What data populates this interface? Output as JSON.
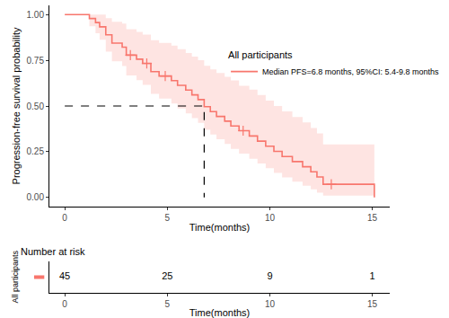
{
  "chart_data": [
    {
      "type": "line",
      "x_label": "Time(months)",
      "y_label": "Progression-free survival probability",
      "legend_title": "All participants",
      "legend": "right",
      "grid": false,
      "xlim": [
        -0.75,
        15.85
      ],
      "ylim": [
        -0.05,
        1.05
      ],
      "xticks": [
        0,
        5,
        10,
        15
      ],
      "yticks": [
        {
          "value": 0,
          "label": "0.00"
        },
        {
          "value": 0.25,
          "label": "0.25"
        },
        {
          "value": 0.5,
          "label": "0.50"
        },
        {
          "value": 0.75,
          "label": "0.75"
        },
        {
          "value": 1,
          "label": "1.00"
        }
      ],
      "x": [
        0,
        1.2,
        1.5,
        1.7,
        2.0,
        2.3,
        2.8,
        3.0,
        3.5,
        3.8,
        4.2,
        4.6,
        5.2,
        5.5,
        5.9,
        6.2,
        6.5,
        6.8,
        7.1,
        7.4,
        7.8,
        8.1,
        8.5,
        9.0,
        9.4,
        9.8,
        10.2,
        10.6,
        11.1,
        11.6,
        12.0,
        12.3,
        12.6,
        15.1
      ],
      "series": [
        {
          "name": "Median PFS=6.8 months, 95%CI: 5.4-9.8 months",
          "color": "#F8766D",
          "line_style": "step",
          "values": [
            1,
            0.978,
            0.956,
            0.933,
            0.889,
            0.844,
            0.822,
            0.778,
            0.756,
            0.733,
            0.688,
            0.664,
            0.639,
            0.613,
            0.587,
            0.561,
            0.535,
            0.496,
            0.469,
            0.443,
            0.417,
            0.391,
            0.365,
            0.336,
            0.308,
            0.28,
            0.252,
            0.224,
            0.196,
            0.168,
            0.14,
            0.112,
            0.072,
            0
          ],
          "lower": [
            1,
            0.936,
            0.898,
            0.862,
            0.797,
            0.744,
            0.718,
            0.667,
            0.641,
            0.616,
            0.566,
            0.54,
            0.513,
            0.486,
            0.46,
            0.434,
            0.408,
            0.37,
            0.344,
            0.318,
            0.292,
            0.266,
            0.24,
            0.212,
            0.186,
            0.16,
            0.134,
            0.11,
            0.086,
            0.064,
            0.044,
            0.026,
            0.01,
            0
          ],
          "upper": [
            1,
            1,
            1,
            1,
            0.98,
            0.96,
            0.95,
            0.92,
            0.905,
            0.89,
            0.86,
            0.845,
            0.83,
            0.81,
            0.79,
            0.77,
            0.75,
            0.72,
            0.7,
            0.68,
            0.66,
            0.64,
            0.61,
            0.59,
            0.56,
            0.53,
            0.5,
            0.47,
            0.44,
            0.41,
            0.38,
            0.35,
            0.29,
            0.29
          ]
        }
      ],
      "censored": {
        "marker": "cross",
        "x": [
          3.2,
          4.0,
          4.9,
          8.7,
          13.0
        ],
        "values": [
          0.778,
          0.733,
          0.664,
          0.365,
          0.072
        ]
      },
      "median_lines": {
        "line_style": "dash",
        "x": [
          0,
          6.8,
          6.8
        ],
        "values": [
          0.5,
          0.5,
          0
        ]
      }
    },
    {
      "type": "risk_table",
      "title": "Number at risk",
      "x_label": "Time(months)",
      "xlim": [
        -0.75,
        15.85
      ],
      "xticks": [
        0,
        5,
        10,
        15
      ],
      "rows": [
        {
          "name": "All participants",
          "color": "#F8766D",
          "x": [
            0,
            5,
            10,
            15
          ],
          "values": [
            45,
            25,
            9,
            1
          ]
        }
      ]
    }
  ]
}
